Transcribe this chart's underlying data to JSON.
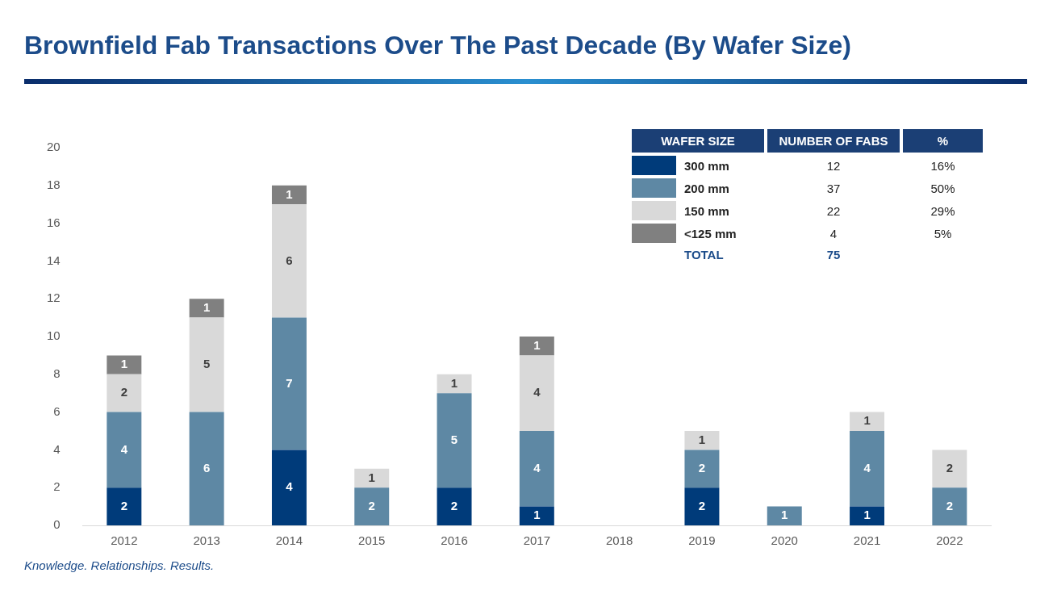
{
  "chart_data": {
    "type": "bar",
    "title": "Brownfield Fab Transactions Over The Past Decade (By Wafer Size)",
    "categories": [
      "2012",
      "2013",
      "2014",
      "2015",
      "2016",
      "2017",
      "2018",
      "2019",
      "2020",
      "2021",
      "2022"
    ],
    "series": [
      {
        "name": "300 mm",
        "color": "#003b7a",
        "values": [
          2,
          null,
          4,
          null,
          2,
          1,
          null,
          2,
          null,
          1,
          null
        ]
      },
      {
        "name": "200 mm",
        "color": "#5e88a4",
        "values": [
          4,
          6,
          7,
          2,
          5,
          4,
          null,
          2,
          1,
          4,
          2
        ]
      },
      {
        "name": "150 mm",
        "color": "#d9d9d9",
        "values": [
          2,
          5,
          6,
          1,
          1,
          4,
          null,
          1,
          null,
          1,
          2
        ]
      },
      {
        "name": "<125 mm",
        "color": "#808080",
        "values": [
          1,
          1,
          1,
          null,
          null,
          1,
          null,
          null,
          null,
          null,
          null
        ]
      }
    ],
    "stacked": true,
    "ylim": [
      0,
      20
    ],
    "yticks": [
      0,
      2,
      4,
      6,
      8,
      10,
      12,
      14,
      16,
      18,
      20
    ],
    "grid": false,
    "data_labels": true,
    "legend": "top right",
    "legend_title": "WAFER SIZE",
    "annotations": [
      "NUMBER OF FABS",
      "%",
      "12",
      "16%",
      "37",
      "50%",
      "22",
      "29%",
      "4",
      "5%",
      "TOTAL",
      "75",
      "Knowledge.  Relationships.  Results."
    ]
  }
}
